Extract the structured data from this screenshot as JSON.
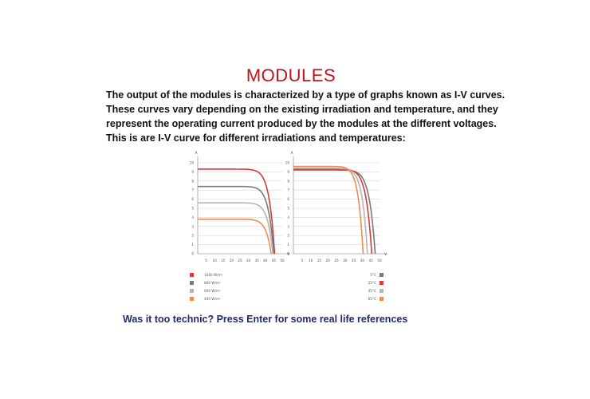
{
  "page": {
    "title": "MODULES",
    "intro_lines": [
      "The output of the modules is characterized by a type of graphs known as I-V curves.",
      "These curves vary depending on the existing irradiation and temperature, and they",
      "represent the operating current produced by the modules at the different voltages.",
      "This is are I-V curve for different irradiations and temperatures:"
    ],
    "footer_prompt": "Was it too technic? Press Enter for some real life references"
  },
  "chart_data": [
    {
      "type": "line",
      "ylabel": "A",
      "xlabel": "V",
      "xlim": [
        0,
        50
      ],
      "ylim": [
        0,
        10
      ],
      "x_ticks": [
        5,
        10,
        15,
        20,
        25,
        30,
        35,
        40,
        45,
        50
      ],
      "y_ticks": [
        0,
        1,
        2,
        3,
        4,
        5,
        6,
        7,
        8,
        9,
        10
      ],
      "grid": true,
      "legend_position": "bottom-left",
      "series": [
        {
          "name": "1000 W/m²",
          "color": "#d93b3b",
          "isc": 9.3,
          "voc": 45.5
        },
        {
          "name": "800 W/m²",
          "color": "#7a7a7a",
          "isc": 7.4,
          "voc": 45.0
        },
        {
          "name": "600 W/m²",
          "color": "#b5b5b5",
          "isc": 5.6,
          "voc": 44.5
        },
        {
          "name": "400 W/m²",
          "color": "#f08a52",
          "isc": 3.8,
          "voc": 43.5
        }
      ]
    },
    {
      "type": "line",
      "ylabel": "A",
      "xlabel": "V",
      "xlim": [
        0,
        50
      ],
      "ylim": [
        0,
        10
      ],
      "x_ticks": [
        5,
        10,
        15,
        20,
        25,
        30,
        35,
        40,
        45,
        50
      ],
      "y_ticks": [
        0,
        1,
        2,
        3,
        4,
        5,
        6,
        7,
        8,
        9,
        10
      ],
      "grid": true,
      "legend_position": "bottom-right",
      "series": [
        {
          "name": "5°C",
          "color": "#7a7a7a",
          "isc": 9.2,
          "voc": 47.5
        },
        {
          "name": "25°C",
          "color": "#d93b3b",
          "isc": 9.3,
          "voc": 45.5
        },
        {
          "name": "45°C",
          "color": "#b5b5b5",
          "isc": 9.4,
          "voc": 43.0
        },
        {
          "name": "65°C",
          "color": "#f08a52",
          "isc": 9.6,
          "voc": 40.5
        }
      ]
    }
  ]
}
